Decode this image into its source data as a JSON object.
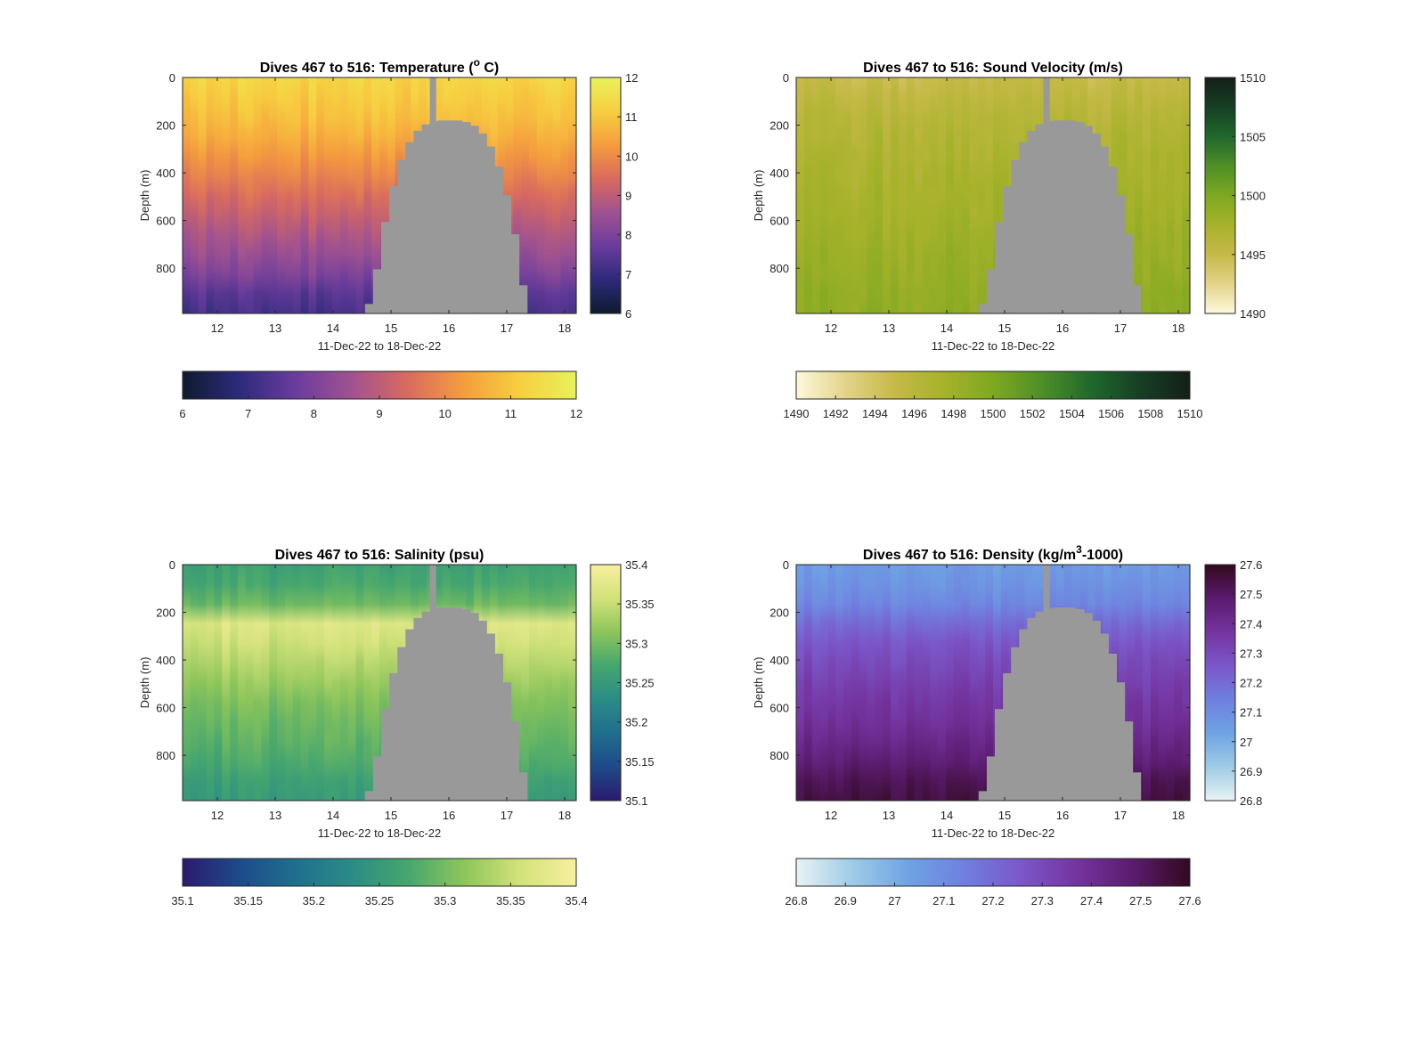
{
  "figure": {
    "panels": [
      {
        "key": "temperature",
        "title_prefix": "Dives 467 to 516: Temperature (",
        "title_sup": "o",
        "title_suffix": " C)",
        "colormap": [
          "#0d1b2e",
          "#2d2a7a",
          "#6a3c9e",
          "#a05290",
          "#d96a5e",
          "#f59d3d",
          "#f7cf40",
          "#e8f25a"
        ],
        "vmin": 6,
        "vmax": 12,
        "cbar_right_ticks": [
          "12",
          "11",
          "10",
          "9",
          "8",
          "7",
          "6"
        ],
        "cbar_bottom_ticks": [
          "6",
          "7",
          "8",
          "9",
          "10",
          "11",
          "12"
        ]
      },
      {
        "key": "sound_velocity",
        "title_prefix": "Dives 467 to 516: Sound Velocity (m/s)",
        "title_sup": "",
        "title_suffix": "",
        "colormap": [
          "#fdf9dc",
          "#e3d38a",
          "#c6b948",
          "#a6b22a",
          "#7ea821",
          "#4e8f27",
          "#20682c",
          "#163f24",
          "#141f17"
        ],
        "vmin": 1490,
        "vmax": 1510,
        "cbar_right_ticks": [
          "1510",
          "1505",
          "1500",
          "1495",
          "1490"
        ],
        "cbar_bottom_ticks": [
          "1490",
          "1492",
          "1494",
          "1496",
          "1498",
          "1500",
          "1502",
          "1504",
          "1506",
          "1508",
          "1510"
        ]
      },
      {
        "key": "salinity",
        "title_prefix": "Dives 467 to 516: Salinity (psu)",
        "title_sup": "",
        "title_suffix": "",
        "colormap": [
          "#2b1a6e",
          "#1e4a8a",
          "#1f6f8e",
          "#2b8c86",
          "#45a66e",
          "#8cc55a",
          "#d3e27a",
          "#f7ef9e"
        ],
        "vmin": 35.1,
        "vmax": 35.4,
        "cbar_right_ticks": [
          "35.4",
          "35.35",
          "35.3",
          "35.25",
          "35.2",
          "35.15",
          "35.1"
        ],
        "cbar_bottom_ticks": [
          "35.1",
          "35.15",
          "35.2",
          "35.25",
          "35.3",
          "35.35",
          "35.4"
        ]
      },
      {
        "key": "density",
        "title_prefix": "Dives 467 to 516: Density (kg/m",
        "title_sup": "3",
        "title_suffix": "-1000)",
        "colormap": [
          "#e9f3f3",
          "#9ecbe6",
          "#6ea3e3",
          "#6f7fdf",
          "#7b57c9",
          "#74349f",
          "#5a1b6e",
          "#33091e"
        ],
        "vmin": 26.8,
        "vmax": 27.6,
        "cbar_right_ticks": [
          "27.6",
          "27.5",
          "27.4",
          "27.3",
          "27.2",
          "27.1",
          "27",
          "26.9",
          "26.8"
        ],
        "cbar_bottom_ticks": [
          "26.8",
          "26.9",
          "27",
          "27.1",
          "27.2",
          "27.3",
          "27.4",
          "27.5",
          "27.6"
        ]
      }
    ],
    "ylabel": "Depth (m)",
    "xlabel": "11-Dec-22 to 18-Dec-22",
    "x_ticks": [
      "12",
      "13",
      "14",
      "15",
      "16",
      "17",
      "18"
    ],
    "y_ticks": [
      "0",
      "200",
      "400",
      "600",
      "800"
    ],
    "mask_color": "#999999"
  },
  "chart_data": [
    {
      "type": "heatmap",
      "title": "Dives 467 to 516: Temperature (° C)",
      "xlabel": "11-Dec-22 to 18-Dec-22",
      "ylabel": "Depth (m)",
      "xlim": [
        11.4,
        18.2
      ],
      "ylim": [
        990,
        0
      ],
      "x_ticks": [
        12,
        13,
        14,
        15,
        16,
        17,
        18
      ],
      "y_ticks": [
        0,
        200,
        400,
        600,
        800
      ],
      "clim": [
        6,
        12
      ],
      "depth": [
        0,
        200,
        400,
        600,
        800,
        950
      ],
      "values_by_depth": [
        11.3,
        10.8,
        9.9,
        9.0,
        8.2,
        7.2
      ],
      "no_data_region": "grey dome from ~14.55 to ~17.3, top at ~180 m depth"
    },
    {
      "type": "heatmap",
      "title": "Dives 467 to 516: Sound Velocity (m/s)",
      "xlabel": "11-Dec-22 to 18-Dec-22",
      "ylabel": "Depth (m)",
      "xlim": [
        11.4,
        18.2
      ],
      "ylim": [
        990,
        0
      ],
      "x_ticks": [
        12,
        13,
        14,
        15,
        16,
        17,
        18
      ],
      "y_ticks": [
        0,
        200,
        400,
        600,
        800
      ],
      "clim": [
        1490,
        1510
      ],
      "depth": [
        0,
        200,
        400,
        600,
        800,
        950
      ],
      "values_by_depth": [
        1495.0,
        1496.5,
        1497.3,
        1497.8,
        1498.5,
        1499.0
      ],
      "no_data_region": "grey dome from ~14.55 to ~17.3, top at ~180 m depth"
    },
    {
      "type": "heatmap",
      "title": "Dives 467 to 516: Salinity (psu)",
      "xlabel": "11-Dec-22 to 18-Dec-22",
      "ylabel": "Depth (m)",
      "xlim": [
        11.4,
        18.2
      ],
      "ylim": [
        990,
        0
      ],
      "x_ticks": [
        12,
        13,
        14,
        15,
        16,
        17,
        18
      ],
      "y_ticks": [
        0,
        200,
        400,
        600,
        800
      ],
      "clim": [
        35.1,
        35.4
      ],
      "depth": [
        0,
        150,
        250,
        400,
        600,
        800,
        950
      ],
      "values_by_depth": [
        35.26,
        35.28,
        35.37,
        35.34,
        35.3,
        35.28,
        35.25
      ],
      "no_data_region": "grey dome from ~14.55 to ~17.3, top at ~180 m depth"
    },
    {
      "type": "heatmap",
      "title": "Dives 467 to 516: Density (kg/m3-1000)",
      "xlabel": "11-Dec-22 to 18-Dec-22",
      "ylabel": "Depth (m)",
      "xlim": [
        11.4,
        18.2
      ],
      "ylim": [
        990,
        0
      ],
      "x_ticks": [
        12,
        13,
        14,
        15,
        16,
        17,
        18
      ],
      "y_ticks": [
        0,
        200,
        400,
        600,
        800
      ],
      "clim": [
        26.8,
        27.6
      ],
      "depth": [
        0,
        150,
        300,
        500,
        700,
        850,
        950
      ],
      "values_by_depth": [
        27.05,
        27.1,
        27.25,
        27.33,
        27.4,
        27.48,
        27.55
      ],
      "no_data_region": "grey dome from ~14.55 to ~17.3, top at ~180 m depth"
    }
  ]
}
